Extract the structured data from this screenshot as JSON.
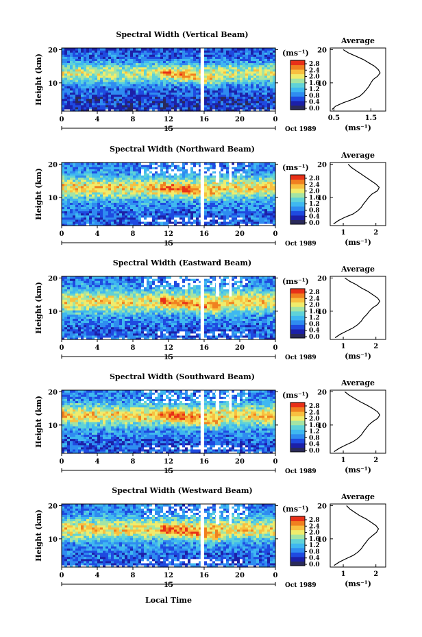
{
  "chart_data": [
    {
      "type": "heatmap",
      "title": "Spectral Width (Vertical Beam)",
      "ylabel": "Height (km)",
      "x_ticks": [
        "0",
        "4",
        "8",
        "12",
        "16",
        "20",
        "0"
      ],
      "y_ticks": [
        "20",
        "10"
      ],
      "date_marker": "15",
      "date_label": "Oct 1989",
      "xlim": [
        0,
        24
      ],
      "ylim": [
        1.5,
        20.5
      ],
      "colorbar": {
        "unit": "(ms⁻¹)",
        "ticks": [
          "2.8",
          "2.4",
          "2.0",
          "1.6",
          "1.2",
          "0.8",
          "0.4",
          "0.0"
        ]
      },
      "profile": {
        "title": "Average",
        "xlabel": "(ms⁻¹)",
        "x_ticks": [
          "0.5",
          "1.5"
        ],
        "y_ticks": [
          "20",
          "10"
        ],
        "xlim": [
          0.4,
          1.9
        ],
        "height": [
          2,
          3,
          4,
          5,
          6,
          7,
          8,
          9,
          10,
          11,
          12,
          13,
          14,
          15,
          16,
          17,
          18,
          19,
          20
        ],
        "width": [
          0.45,
          0.55,
          0.75,
          1.0,
          1.2,
          1.3,
          1.38,
          1.45,
          1.5,
          1.56,
          1.68,
          1.75,
          1.7,
          1.6,
          1.45,
          1.3,
          1.1,
          0.9,
          0.75
        ]
      },
      "data_gaps": [
        [
          15.6,
          16.0
        ]
      ]
    },
    {
      "type": "heatmap",
      "title": "Spectral Width (Northward Beam)",
      "ylabel": "Height (km)",
      "x_ticks": [
        "0",
        "4",
        "8",
        "12",
        "16",
        "20",
        "0"
      ],
      "y_ticks": [
        "20",
        "10"
      ],
      "date_marker": "15",
      "date_label": "Oct 1989",
      "xlim": [
        0,
        24
      ],
      "ylim": [
        1.5,
        20.5
      ],
      "colorbar": {
        "unit": "(ms⁻¹)",
        "ticks": [
          "2.8",
          "2.4",
          "2.0",
          "1.6",
          "1.2",
          "0.8",
          "0.4",
          "0.0"
        ]
      },
      "profile": {
        "title": "Average",
        "xlabel": "(ms⁻¹)",
        "x_ticks": [
          "1",
          "2"
        ],
        "y_ticks": [
          "20",
          "10"
        ],
        "xlim": [
          0.6,
          2.3
        ],
        "height": [
          2,
          3,
          4,
          5,
          6,
          7,
          8,
          9,
          10,
          11,
          12,
          13,
          14,
          15,
          16,
          17,
          18,
          19,
          20
        ],
        "width": [
          0.7,
          0.85,
          1.05,
          1.3,
          1.45,
          1.55,
          1.62,
          1.7,
          1.78,
          1.88,
          2.05,
          2.1,
          2.0,
          1.85,
          1.7,
          1.55,
          1.4,
          1.25,
          1.15
        ]
      },
      "data_gaps": [
        [
          15.6,
          16.0
        ]
      ]
    },
    {
      "type": "heatmap",
      "title": "Spectral Width (Eastward Beam)",
      "ylabel": "Height (km)",
      "x_ticks": [
        "0",
        "4",
        "8",
        "12",
        "16",
        "20",
        "0"
      ],
      "y_ticks": [
        "20",
        "10"
      ],
      "date_marker": "15",
      "date_label": "Oct 1989",
      "xlim": [
        0,
        24
      ],
      "ylim": [
        1.5,
        20.5
      ],
      "colorbar": {
        "unit": "(ms⁻¹)",
        "ticks": [
          "2.8",
          "2.4",
          "2.0",
          "1.6",
          "1.2",
          "0.8",
          "0.4",
          "0.0"
        ]
      },
      "profile": {
        "title": "Average",
        "xlabel": "(ms⁻¹)",
        "x_ticks": [
          "1",
          "2"
        ],
        "y_ticks": [
          "20",
          "10"
        ],
        "xlim": [
          0.6,
          2.3
        ],
        "height": [
          2,
          3,
          4,
          5,
          6,
          7,
          8,
          9,
          10,
          11,
          12,
          13,
          14,
          15,
          16,
          17,
          18,
          19,
          20
        ],
        "width": [
          0.75,
          0.9,
          1.1,
          1.3,
          1.45,
          1.55,
          1.62,
          1.72,
          1.8,
          1.9,
          2.05,
          2.12,
          2.05,
          1.9,
          1.75,
          1.55,
          1.4,
          1.2,
          1.05
        ]
      },
      "data_gaps": [
        [
          15.6,
          16.0
        ]
      ]
    },
    {
      "type": "heatmap",
      "title": "Spectral Width (Southward Beam)",
      "ylabel": "Height (km)",
      "x_ticks": [
        "0",
        "4",
        "8",
        "12",
        "16",
        "20",
        "0"
      ],
      "y_ticks": [
        "20",
        "10"
      ],
      "date_marker": "15",
      "date_label": "Oct 1989",
      "xlim": [
        0,
        24
      ],
      "ylim": [
        1.5,
        20.5
      ],
      "colorbar": {
        "unit": "(ms⁻¹)",
        "ticks": [
          "2.8",
          "2.4",
          "2.0",
          "1.6",
          "1.2",
          "0.8",
          "0.4",
          "0.0"
        ]
      },
      "profile": {
        "title": "Average",
        "xlabel": "(ms⁻¹)",
        "x_ticks": [
          "1",
          "2"
        ],
        "y_ticks": [
          "20",
          "10"
        ],
        "xlim": [
          0.6,
          2.3
        ],
        "height": [
          2,
          3,
          4,
          5,
          6,
          7,
          8,
          9,
          10,
          11,
          12,
          13,
          14,
          15,
          16,
          17,
          18,
          19,
          20
        ],
        "width": [
          0.72,
          0.88,
          1.08,
          1.3,
          1.45,
          1.55,
          1.62,
          1.7,
          1.78,
          1.9,
          2.05,
          2.12,
          2.05,
          1.9,
          1.72,
          1.52,
          1.35,
          1.18,
          1.05
        ]
      },
      "data_gaps": [
        [
          15.6,
          16.0
        ]
      ]
    },
    {
      "type": "heatmap",
      "title": "Spectral Width (Westward Beam)",
      "ylabel": "Height (km)",
      "x_ticks": [
        "0",
        "4",
        "8",
        "12",
        "16",
        "20",
        "0"
      ],
      "y_ticks": [
        "20",
        "10"
      ],
      "date_marker": "15",
      "date_label": "Oct 1989",
      "xlim": [
        0,
        24
      ],
      "ylim": [
        1.5,
        20.5
      ],
      "colorbar": {
        "unit": "(ms⁻¹)",
        "ticks": [
          "2.8",
          "2.4",
          "2.0",
          "1.6",
          "1.2",
          "0.8",
          "0.4",
          "0.0"
        ]
      },
      "profile": {
        "title": "Average",
        "xlabel": "(ms⁻¹)",
        "x_ticks": [
          "1",
          "2"
        ],
        "y_ticks": [
          "20",
          "10"
        ],
        "xlim": [
          0.6,
          2.3
        ],
        "height": [
          2,
          3,
          4,
          5,
          6,
          7,
          8,
          9,
          10,
          11,
          12,
          13,
          14,
          15,
          16,
          17,
          18,
          19,
          20
        ],
        "width": [
          0.72,
          0.88,
          1.08,
          1.3,
          1.45,
          1.55,
          1.62,
          1.7,
          1.78,
          1.9,
          2.02,
          2.08,
          2.0,
          1.85,
          1.7,
          1.5,
          1.35,
          1.2,
          1.1
        ]
      },
      "data_gaps": [
        [
          15.6,
          16.0
        ]
      ]
    }
  ],
  "xlabel_bottom": "Local Time",
  "colormap": [
    "#2a2a5a",
    "#1c20a8",
    "#1f4ae0",
    "#2f8cf0",
    "#3fb8f0",
    "#5fd2d8",
    "#a4e4a4",
    "#f0ec6c",
    "#f8c040",
    "#f08020",
    "#e83018"
  ]
}
